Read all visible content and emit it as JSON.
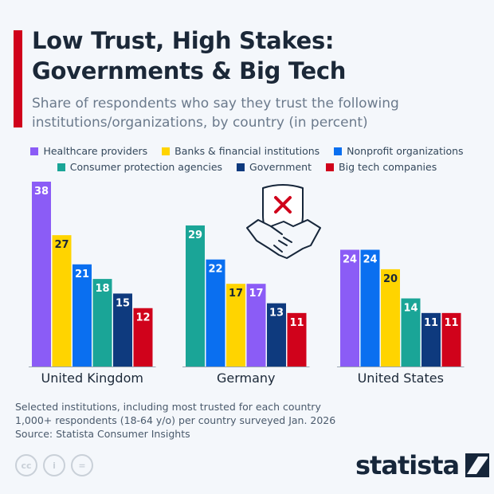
{
  "title_line1": "Low Trust, High Stakes:",
  "title_line2": "Governments & Big Tech",
  "subtitle_line1": "Share of respondents who say they trust the following",
  "subtitle_line2": "institutions/organizations, by country (in percent)",
  "footnote_line1": "Selected institutions, including most trusted for each country",
  "footnote_line2": "1,000+ respondents (18-64 y/o) per country surveyed Jan. 2026",
  "source": "Source: Statista Consumer Insights",
  "logo": "statista",
  "license_icons": [
    "cc-icon",
    "attribution-icon",
    "no-derivatives-icon"
  ],
  "illustration_icon": "handshake-shield-x-icon",
  "chart_data": {
    "type": "bar",
    "title": "Low Trust, High Stakes: Governments & Big Tech",
    "legend_placement": "top",
    "grid": false,
    "ylim": [
      0,
      38
    ],
    "series_colors": {
      "Healthcare providers": "#8b5cf6",
      "Banks & financial institutions": "#ffd400",
      "Nonprofit organizations": "#0a6ff0",
      "Consumer protection agencies": "#1aa597",
      "Government": "#0e3a7e",
      "Big tech companies": "#d0021b"
    },
    "legend": [
      "Healthcare providers",
      "Banks & financial institutions",
      "Nonprofit organizations",
      "Consumer protection agencies",
      "Government",
      "Big tech companies"
    ],
    "groups": [
      {
        "category": "United Kingdom",
        "bars": [
          {
            "series": "Healthcare providers",
            "value": 38
          },
          {
            "series": "Banks & financial institutions",
            "value": 27
          },
          {
            "series": "Nonprofit organizations",
            "value": 21
          },
          {
            "series": "Consumer protection agencies",
            "value": 18
          },
          {
            "series": "Government",
            "value": 15
          },
          {
            "series": "Big tech companies",
            "value": 12
          }
        ]
      },
      {
        "category": "Germany",
        "bars": [
          {
            "series": "Consumer protection agencies",
            "value": 29
          },
          {
            "series": "Nonprofit organizations",
            "value": 22
          },
          {
            "series": "Banks & financial institutions",
            "value": 17
          },
          {
            "series": "Healthcare providers",
            "value": 17
          },
          {
            "series": "Government",
            "value": 13
          },
          {
            "series": "Big tech companies",
            "value": 11
          }
        ]
      },
      {
        "category": "United States",
        "bars": [
          {
            "series": "Healthcare providers",
            "value": 24
          },
          {
            "series": "Nonprofit organizations",
            "value": 24
          },
          {
            "series": "Banks & financial institutions",
            "value": 20
          },
          {
            "series": "Consumer protection agencies",
            "value": 14
          },
          {
            "series": "Government",
            "value": 11
          },
          {
            "series": "Big tech companies",
            "value": 11
          }
        ]
      }
    ]
  }
}
